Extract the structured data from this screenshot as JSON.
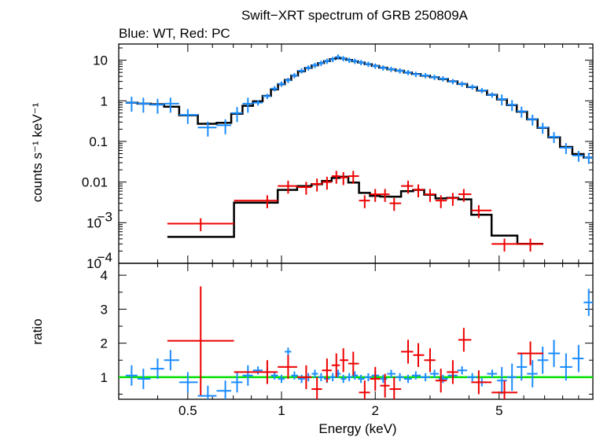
{
  "colors": {
    "wt": "#1a8cff",
    "pc": "#ee0000",
    "model": "#000000",
    "unity": "#00e000"
  },
  "chart_data": [
    {
      "type": "scatter",
      "title": "Swift−XRT spectrum of GRB 250809A",
      "subtitle": "Blue: WT, Red: PC",
      "ylabel": "counts s⁻¹ keV⁻¹",
      "xscale": "log",
      "yscale": "log",
      "xlim": [
        0.3,
        10
      ],
      "ylim": [
        0.0001,
        25
      ],
      "grid": false,
      "xticks": [
        0.5,
        1,
        2,
        5
      ],
      "yticks": [
        {
          "value": 10,
          "label": "10"
        },
        {
          "value": 1,
          "label": "1"
        },
        {
          "value": 0.1,
          "label": "0.1"
        },
        {
          "value": 0.01,
          "label": "0.01"
        },
        {
          "value": 0.001,
          "label": "10",
          "sup": "−3"
        },
        {
          "value": 0.0001,
          "label": "10",
          "sup": "−4"
        }
      ],
      "series": [
        {
          "key": "wt",
          "points": [
            {
              "x": 0.33,
              "y": 0.9
            },
            {
              "x": 0.36,
              "y": 0.85
            },
            {
              "x": 0.4,
              "y": 0.8
            },
            {
              "x": 0.44,
              "y": 0.85
            },
            {
              "x": 0.5,
              "y": 0.45
            },
            {
              "x": 0.58,
              "y": 0.22
            },
            {
              "x": 0.66,
              "y": 0.25
            },
            {
              "x": 0.72,
              "y": 0.5
            },
            {
              "x": 0.78,
              "y": 0.85
            },
            {
              "x": 0.84,
              "y": 0.9
            },
            {
              "x": 0.9,
              "y": 1.3
            },
            {
              "x": 0.95,
              "y": 2.0
            },
            {
              "x": 1.0,
              "y": 2.6
            },
            {
              "x": 1.05,
              "y": 3.2
            },
            {
              "x": 1.1,
              "y": 4.2
            },
            {
              "x": 1.16,
              "y": 5.5
            },
            {
              "x": 1.22,
              "y": 6.5
            },
            {
              "x": 1.28,
              "y": 7.5
            },
            {
              "x": 1.34,
              "y": 8.5
            },
            {
              "x": 1.4,
              "y": 9.5
            },
            {
              "x": 1.46,
              "y": 10.5
            },
            {
              "x": 1.52,
              "y": 12
            },
            {
              "x": 1.58,
              "y": 11
            },
            {
              "x": 1.65,
              "y": 10
            },
            {
              "x": 1.72,
              "y": 9.5
            },
            {
              "x": 1.8,
              "y": 8.8
            },
            {
              "x": 1.9,
              "y": 8
            },
            {
              "x": 2.0,
              "y": 7.2
            },
            {
              "x": 2.12,
              "y": 6.5
            },
            {
              "x": 2.25,
              "y": 6.0
            },
            {
              "x": 2.4,
              "y": 5.5
            },
            {
              "x": 2.55,
              "y": 5.0
            },
            {
              "x": 2.7,
              "y": 4.5
            },
            {
              "x": 2.9,
              "y": 4.2
            },
            {
              "x": 3.1,
              "y": 3.8
            },
            {
              "x": 3.3,
              "y": 3.5
            },
            {
              "x": 3.55,
              "y": 3.0
            },
            {
              "x": 3.8,
              "y": 2.6
            },
            {
              "x": 4.1,
              "y": 2.2
            },
            {
              "x": 4.4,
              "y": 1.8
            },
            {
              "x": 4.75,
              "y": 1.4
            },
            {
              "x": 5.1,
              "y": 1.1
            },
            {
              "x": 5.5,
              "y": 0.8
            },
            {
              "x": 5.9,
              "y": 0.55
            },
            {
              "x": 6.4,
              "y": 0.35
            },
            {
              "x": 6.9,
              "y": 0.22
            },
            {
              "x": 7.5,
              "y": 0.13
            },
            {
              "x": 8.2,
              "y": 0.07
            },
            {
              "x": 9.0,
              "y": 0.045
            },
            {
              "x": 9.7,
              "y": 0.04
            }
          ]
        },
        {
          "key": "pc",
          "points": [
            {
              "x": 0.55,
              "y": 0.00095
            },
            {
              "x": 0.9,
              "y": 0.0035
            },
            {
              "x": 1.05,
              "y": 0.008
            },
            {
              "x": 1.2,
              "y": 0.0075
            },
            {
              "x": 1.3,
              "y": 0.009
            },
            {
              "x": 1.4,
              "y": 0.01
            },
            {
              "x": 1.5,
              "y": 0.014
            },
            {
              "x": 1.58,
              "y": 0.013
            },
            {
              "x": 1.7,
              "y": 0.014
            },
            {
              "x": 1.85,
              "y": 0.0035
            },
            {
              "x": 2.0,
              "y": 0.005
            },
            {
              "x": 2.15,
              "y": 0.005
            },
            {
              "x": 2.3,
              "y": 0.003
            },
            {
              "x": 2.55,
              "y": 0.008
            },
            {
              "x": 2.75,
              "y": 0.0065
            },
            {
              "x": 3.0,
              "y": 0.005
            },
            {
              "x": 3.25,
              "y": 0.0035
            },
            {
              "x": 3.55,
              "y": 0.004
            },
            {
              "x": 3.85,
              "y": 0.005
            },
            {
              "x": 4.3,
              "y": 0.002
            },
            {
              "x": 5.2,
              "y": 0.0003
            },
            {
              "x": 6.3,
              "y": 0.0003
            }
          ]
        }
      ]
    },
    {
      "type": "scatter",
      "ylabel": "ratio",
      "xlabel": "Energy (keV)",
      "xscale": "log",
      "xlim": [
        0.3,
        10
      ],
      "ylim": [
        0.35,
        4.35
      ],
      "grid": false,
      "xticks": [
        0.5,
        1,
        2,
        5
      ],
      "yticks": [
        1,
        2,
        3,
        4
      ],
      "reference_line": 1,
      "series": [
        {
          "key": "wt",
          "points": [
            {
              "x": 0.33,
              "y": 1.05
            },
            {
              "x": 0.36,
              "y": 0.95
            },
            {
              "x": 0.4,
              "y": 1.25
            },
            {
              "x": 0.44,
              "y": 1.5
            },
            {
              "x": 0.5,
              "y": 0.85
            },
            {
              "x": 0.58,
              "y": 0.45
            },
            {
              "x": 0.66,
              "y": 0.6
            },
            {
              "x": 0.72,
              "y": 0.85
            },
            {
              "x": 0.78,
              "y": 1.05
            },
            {
              "x": 0.84,
              "y": 1.2
            },
            {
              "x": 0.9,
              "y": 1.15
            },
            {
              "x": 0.95,
              "y": 1.05
            },
            {
              "x": 1.0,
              "y": 0.95
            },
            {
              "x": 1.05,
              "y": 1.75
            },
            {
              "x": 1.1,
              "y": 1.05
            },
            {
              "x": 1.16,
              "y": 0.95
            },
            {
              "x": 1.22,
              "y": 1.0
            },
            {
              "x": 1.28,
              "y": 1.1
            },
            {
              "x": 1.34,
              "y": 1.0
            },
            {
              "x": 1.4,
              "y": 0.95
            },
            {
              "x": 1.46,
              "y": 1.0
            },
            {
              "x": 1.52,
              "y": 1.1
            },
            {
              "x": 1.58,
              "y": 0.95
            },
            {
              "x": 1.65,
              "y": 1.0
            },
            {
              "x": 1.72,
              "y": 1.05
            },
            {
              "x": 1.8,
              "y": 0.95
            },
            {
              "x": 1.9,
              "y": 1.0
            },
            {
              "x": 2.0,
              "y": 1.05
            },
            {
              "x": 2.12,
              "y": 0.95
            },
            {
              "x": 2.25,
              "y": 1.1
            },
            {
              "x": 2.4,
              "y": 1.0
            },
            {
              "x": 2.55,
              "y": 0.95
            },
            {
              "x": 2.7,
              "y": 1.05
            },
            {
              "x": 2.9,
              "y": 1.0
            },
            {
              "x": 3.1,
              "y": 1.1
            },
            {
              "x": 3.3,
              "y": 0.95
            },
            {
              "x": 3.55,
              "y": 1.05
            },
            {
              "x": 3.8,
              "y": 1.2
            },
            {
              "x": 4.1,
              "y": 1.0
            },
            {
              "x": 4.4,
              "y": 0.85
            },
            {
              "x": 4.75,
              "y": 1.1
            },
            {
              "x": 5.1,
              "y": 0.9
            },
            {
              "x": 5.5,
              "y": 1.0
            },
            {
              "x": 5.9,
              "y": 1.3
            },
            {
              "x": 6.4,
              "y": 1.1
            },
            {
              "x": 6.9,
              "y": 1.5
            },
            {
              "x": 7.5,
              "y": 1.7
            },
            {
              "x": 8.2,
              "y": 1.3
            },
            {
              "x": 9.0,
              "y": 1.55
            },
            {
              "x": 9.7,
              "y": 3.2
            }
          ]
        },
        {
          "key": "pc",
          "points": [
            {
              "x": 0.55,
              "y": 2.07
            },
            {
              "x": 0.9,
              "y": 1.15
            },
            {
              "x": 1.05,
              "y": 1.3
            },
            {
              "x": 1.2,
              "y": 1.0
            },
            {
              "x": 1.3,
              "y": 0.65
            },
            {
              "x": 1.4,
              "y": 1.2
            },
            {
              "x": 1.5,
              "y": 1.35
            },
            {
              "x": 1.58,
              "y": 1.5
            },
            {
              "x": 1.7,
              "y": 1.4
            },
            {
              "x": 1.85,
              "y": 0.55
            },
            {
              "x": 2.0,
              "y": 0.95
            },
            {
              "x": 2.15,
              "y": 0.75
            },
            {
              "x": 2.3,
              "y": 0.65
            },
            {
              "x": 2.55,
              "y": 1.75
            },
            {
              "x": 2.75,
              "y": 1.65
            },
            {
              "x": 3.0,
              "y": 1.5
            },
            {
              "x": 3.25,
              "y": 0.9
            },
            {
              "x": 3.55,
              "y": 1.15
            },
            {
              "x": 3.85,
              "y": 2.1
            },
            {
              "x": 4.3,
              "y": 0.85
            },
            {
              "x": 5.2,
              "y": 0.55
            },
            {
              "x": 6.3,
              "y": 1.7
            }
          ]
        }
      ]
    }
  ]
}
